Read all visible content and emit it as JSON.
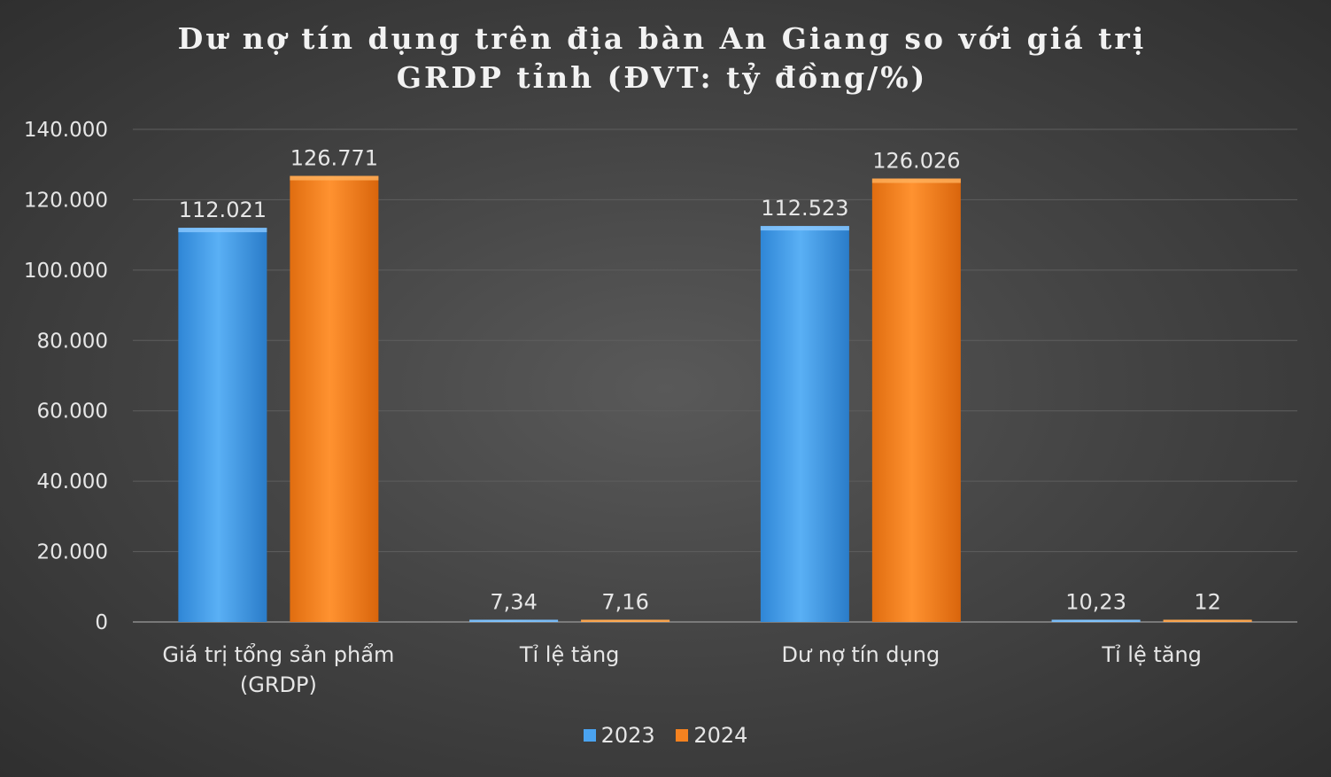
{
  "chart_data": {
    "type": "bar",
    "title": "Dư nợ tín dụng trên địa bàn An Giang so với giá trị\nGRDP tỉnh (ĐVT: tỷ đồng/%)",
    "categories": [
      "Giá trị tổng sản phẩm\n(GRDP)",
      "Tỉ lệ tăng",
      "Dư nợ tín dụng",
      "Tỉ lệ tăng"
    ],
    "series": [
      {
        "name": "2023",
        "values": [
          112021,
          7.34,
          112523,
          10.23
        ],
        "labels": [
          "112.021",
          "7,34",
          "112.523",
          "10,23"
        ],
        "color": "#4aa3f0"
      },
      {
        "name": "2024",
        "values": [
          126771,
          7.16,
          126026,
          12
        ],
        "labels": [
          "126.771",
          "7,16",
          "126.026",
          "12"
        ],
        "color": "#f58220"
      }
    ],
    "ylim": [
      0,
      140000
    ],
    "yticks": [
      0,
      20000,
      40000,
      60000,
      80000,
      100000,
      120000,
      140000
    ],
    "ytick_labels": [
      "0",
      "20.000",
      "40.000",
      "60.000",
      "80.000",
      "100.000",
      "120.000",
      "140.000"
    ],
    "xlabel": "",
    "ylabel": "",
    "grid": true,
    "legend_position": "bottom"
  }
}
